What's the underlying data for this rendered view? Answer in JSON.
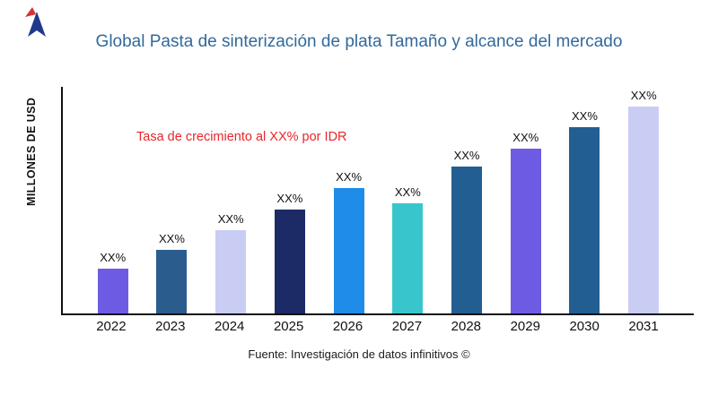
{
  "title": "Global Pasta de sinterización de plata Tamaño y alcance del mercado",
  "ylabel": "MILLONES DE USD",
  "annotation": "Tasa de crecimiento al XX% por IDR",
  "source": "Fuente: Investigación de datos infinitivos ©",
  "colors": {
    "title": "#32699b",
    "annotation": "#e8262c",
    "axis": "#111111",
    "logo_red": "#d63430",
    "logo_navy": "#20398f"
  },
  "chart_data": {
    "type": "bar",
    "title": "Global Pasta de sinterización de plata Tamaño y alcance del mercado",
    "xlabel": "",
    "ylabel": "MILLONES DE USD",
    "categories": [
      "2022",
      "2023",
      "2024",
      "2025",
      "2026",
      "2027",
      "2028",
      "2029",
      "2030",
      "2031"
    ],
    "values": [
      50,
      71,
      93,
      116,
      140,
      123,
      164,
      184,
      208,
      231
    ],
    "value_unit": "relative-height-px (no numeric axis values shown in source image)",
    "ylim": [
      0,
      255
    ],
    "bar_labels": [
      "XX%",
      "XX%",
      "XX%",
      "XX%",
      "XX%",
      "XX%",
      "XX%",
      "XX%",
      "XX%",
      "XX%"
    ],
    "bar_colors": [
      "#6e5be4",
      "#2b5c8e",
      "#c9cdf4",
      "#1c2b66",
      "#1e8ce8",
      "#38c6cc",
      "#235e92",
      "#6e5be4",
      "#235e92",
      "#c9cdf4"
    ],
    "grid": false,
    "legend": false,
    "annotation": "Tasa de crecimiento al XX% por IDR"
  }
}
